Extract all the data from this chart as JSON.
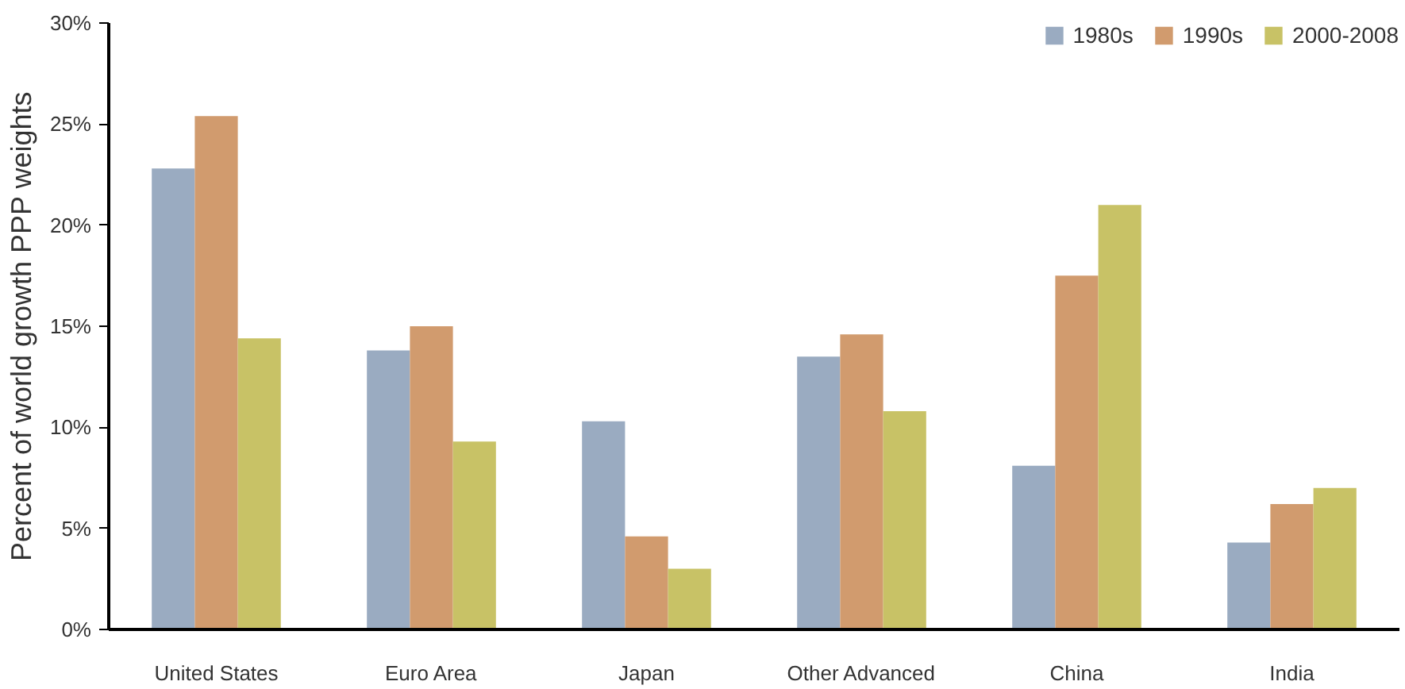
{
  "chart_data": {
    "type": "bar",
    "ylabel": "Percent of world growth PPP weights",
    "categories": [
      "United States",
      "Euro Area",
      "Japan",
      "Other Advanced",
      "China",
      "India"
    ],
    "series": [
      {
        "name": "1980s",
        "color": "#9aabc1",
        "values": [
          22.8,
          13.8,
          10.3,
          13.5,
          8.1,
          4.3
        ]
      },
      {
        "name": "1990s",
        "color": "#d19b6e",
        "values": [
          25.4,
          15.0,
          4.6,
          14.6,
          17.5,
          6.2
        ]
      },
      {
        "name": "2000-2008",
        "color": "#c8c266",
        "values": [
          14.4,
          9.3,
          3.0,
          10.8,
          21.0,
          7.0
        ]
      }
    ],
    "ylim": [
      0,
      30
    ],
    "yticks": [
      {
        "value": 0,
        "label": "0%"
      },
      {
        "value": 5,
        "label": "5%"
      },
      {
        "value": 10,
        "label": "10%"
      },
      {
        "value": 15,
        "label": "15%"
      },
      {
        "value": 20,
        "label": "20%"
      },
      {
        "value": 25,
        "label": "25%"
      },
      {
        "value": 30,
        "label": "30%"
      }
    ],
    "grid": false,
    "legend": "top right"
  }
}
